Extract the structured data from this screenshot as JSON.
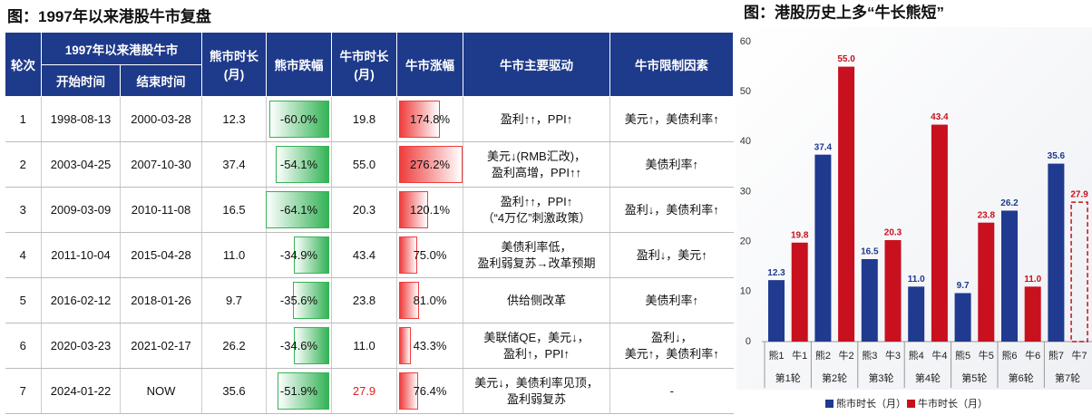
{
  "table": {
    "title": "图：1997年以来港股牛市复盘",
    "header": {
      "round": "轮次",
      "period": "1997年以来港股牛市",
      "start": "开始时间",
      "end": "结束时间",
      "bear_duration": "熊市时长\n(月)",
      "bear_decline": "熊市跌幅",
      "bull_duration": "牛市时长\n(月)",
      "bull_gain": "牛市涨幅",
      "drivers": "牛市主要驱动",
      "limits": "牛市限制因素"
    },
    "negative_bar_color": "#34b356",
    "positive_bar_color": "#ef3d3d",
    "rows": [
      [
        "1",
        "1998-08-13",
        "2000-03-28",
        "12.3",
        {
          "value": -60.0,
          "label": "-60.0%"
        },
        "19.8",
        {
          "value": 174.8,
          "label": "174.8%"
        },
        "盈利↑↑，PPI↑",
        "美元↑，美债利率↑"
      ],
      [
        "2",
        "2003-04-25",
        "2007-10-30",
        "37.4",
        {
          "value": -54.1,
          "label": "-54.1%"
        },
        "55.0",
        {
          "value": 276.2,
          "label": "276.2%"
        },
        "美元↓(RMB汇改)，\n盈利高增，PPI↑↑",
        "美债利率↑"
      ],
      [
        "3",
        "2009-03-09",
        "2010-11-08",
        "16.5",
        {
          "value": -64.1,
          "label": "-64.1%"
        },
        "20.3",
        {
          "value": 120.1,
          "label": "120.1%"
        },
        "盈利↑↑，PPI↑\n（“4万亿”刺激政策）",
        "盈利↓，美债利率↑"
      ],
      [
        "4",
        "2011-10-04",
        "2015-04-28",
        "11.0",
        {
          "value": -34.9,
          "label": "-34.9%"
        },
        "43.4",
        {
          "value": 75.0,
          "label": "75.0%"
        },
        "美债利率低，\n盈利弱复苏→改革预期",
        "盈利↓，美元↑"
      ],
      [
        "5",
        "2016-02-12",
        "2018-01-26",
        "9.7",
        {
          "value": -35.6,
          "label": "-35.6%"
        },
        "23.8",
        {
          "value": 81.0,
          "label": "81.0%"
        },
        "供给侧改革",
        "美债利率↑"
      ],
      [
        "6",
        "2020-03-23",
        "2021-02-17",
        "26.2",
        {
          "value": -34.6,
          "label": "-34.6%"
        },
        "11.0",
        {
          "value": 43.3,
          "label": "43.3%"
        },
        "美联储QE，美元↓，\n盈利↑，PPI↑",
        "盈利↓，\n美元↑，美债利率↑"
      ],
      [
        "7",
        "2024-01-22",
        "NOW",
        "35.6",
        {
          "value": -51.9,
          "label": "-51.9%"
        },
        {
          "label": "27.9",
          "color": "#e02020"
        },
        {
          "value": 76.4,
          "label": "76.4%"
        },
        "美元↓，美债利率见顶，\n盈利弱复苏",
        "-"
      ]
    ]
  },
  "chart_data": {
    "type": "bar",
    "title": "图：港股历史上多“牛长熊短”",
    "groups": [
      "第1轮",
      "第2轮",
      "第3轮",
      "第4轮",
      "第5轮",
      "第6轮",
      "第7轮"
    ],
    "ylim": [
      0,
      60
    ],
    "yticks": [
      0,
      10,
      20,
      30,
      40,
      50,
      60
    ],
    "series": [
      {
        "name": "熊市时长（月）",
        "color": "#1f3a8f",
        "labels": [
          "熊1",
          "熊2",
          "熊3",
          "熊4",
          "熊5",
          "熊6",
          "熊7"
        ],
        "values": [
          12.3,
          37.4,
          16.5,
          11.0,
          9.7,
          26.2,
          35.6
        ],
        "value_labels": [
          "12.3",
          "37.4",
          "16.5",
          "11.0",
          "9.7",
          "26.2",
          "35.6"
        ]
      },
      {
        "name": "牛市时长（月）",
        "color": "#c8101e",
        "labels": [
          "牛1",
          "牛2",
          "牛3",
          "牛4",
          "牛5",
          "牛6",
          "牛7"
        ],
        "values": [
          19.8,
          55.0,
          20.3,
          43.4,
          23.8,
          11.0,
          27.9
        ],
        "value_labels": [
          "19.8",
          "55.0",
          "20.3",
          "43.4",
          "23.8",
          "11.0",
          "27.9"
        ],
        "dashed_index": 6
      }
    ]
  }
}
